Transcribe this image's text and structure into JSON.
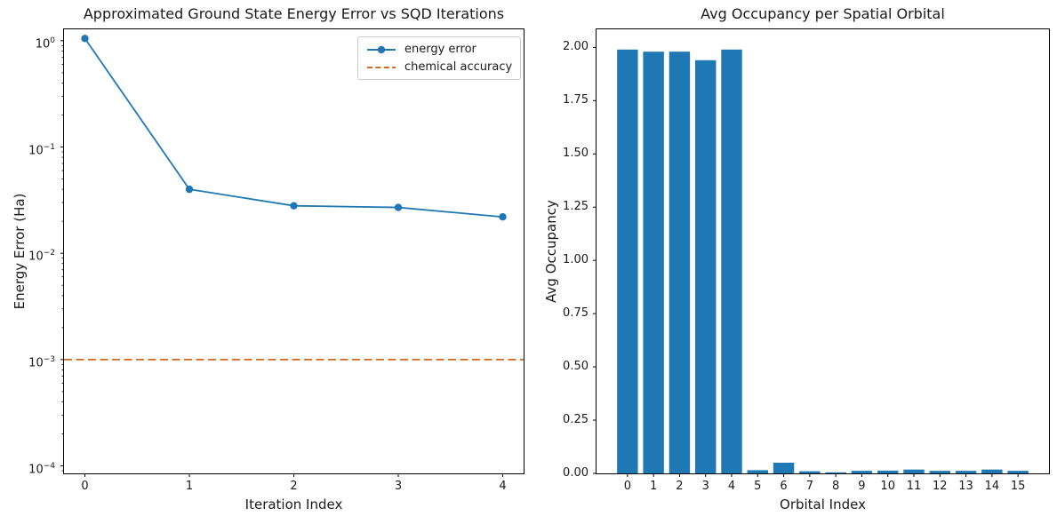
{
  "figure": {
    "background": "#ffffff"
  },
  "colors": {
    "series_blue": "#1f77b4",
    "accuracy_orange": "#d2691e",
    "bar_blue": "#1f77b4",
    "spine": "#000000",
    "text": "#1a1a1a",
    "legend_border": "#cccccc"
  },
  "chart_data": [
    {
      "type": "line",
      "title": "Approximated Ground State Energy Error vs SQD Iterations",
      "xlabel": "Iteration Index",
      "ylabel": "Energy Error (Ha)",
      "yscale": "log",
      "x": [
        0,
        1,
        2,
        3,
        4
      ],
      "xticklabels": [
        "0",
        "1",
        "2",
        "3",
        "4"
      ],
      "series": [
        {
          "name": "energy error",
          "values": [
            1.05,
            0.04,
            0.028,
            0.027,
            0.022
          ],
          "color": "#1f77b4",
          "marker": "o",
          "style": "solid"
        }
      ],
      "hline": {
        "label": "chemical accuracy",
        "value": 0.001,
        "color": "#d2691e",
        "style": "dashed"
      },
      "legend": {
        "position": "upper right",
        "entries": [
          "energy error",
          "chemical accuracy"
        ]
      },
      "xlim": [
        -0.2,
        4.2
      ],
      "ylim": [
        8.5e-05,
        1.28
      ],
      "ytick_exponents": [
        0,
        -1,
        -2,
        -3,
        -4
      ],
      "grid": false
    },
    {
      "type": "bar",
      "title": "Avg Occupancy per Spatial Orbital",
      "xlabel": "Orbital Index",
      "ylabel": "Avg Occupancy",
      "categories": [
        "0",
        "1",
        "2",
        "3",
        "4",
        "5",
        "6",
        "7",
        "8",
        "9",
        "10",
        "11",
        "12",
        "13",
        "14",
        "15"
      ],
      "values": [
        1.99,
        1.98,
        1.98,
        1.94,
        1.99,
        0.015,
        0.05,
        0.01,
        0.005,
        0.012,
        0.013,
        0.018,
        0.012,
        0.012,
        0.018,
        0.012
      ],
      "bar_color": "#1f77b4",
      "bar_width": 0.8,
      "xlim": [
        -1.19,
        16.19
      ],
      "ylim": [
        0,
        2.085
      ],
      "yticks": [
        0,
        0.25,
        0.5,
        0.75,
        1.0,
        1.25,
        1.5,
        1.75,
        2.0
      ],
      "ytick_labels": [
        "0.00",
        "0.25",
        "0.50",
        "0.75",
        "1.00",
        "1.25",
        "1.50",
        "1.75",
        "2.00"
      ],
      "grid": false
    }
  ]
}
